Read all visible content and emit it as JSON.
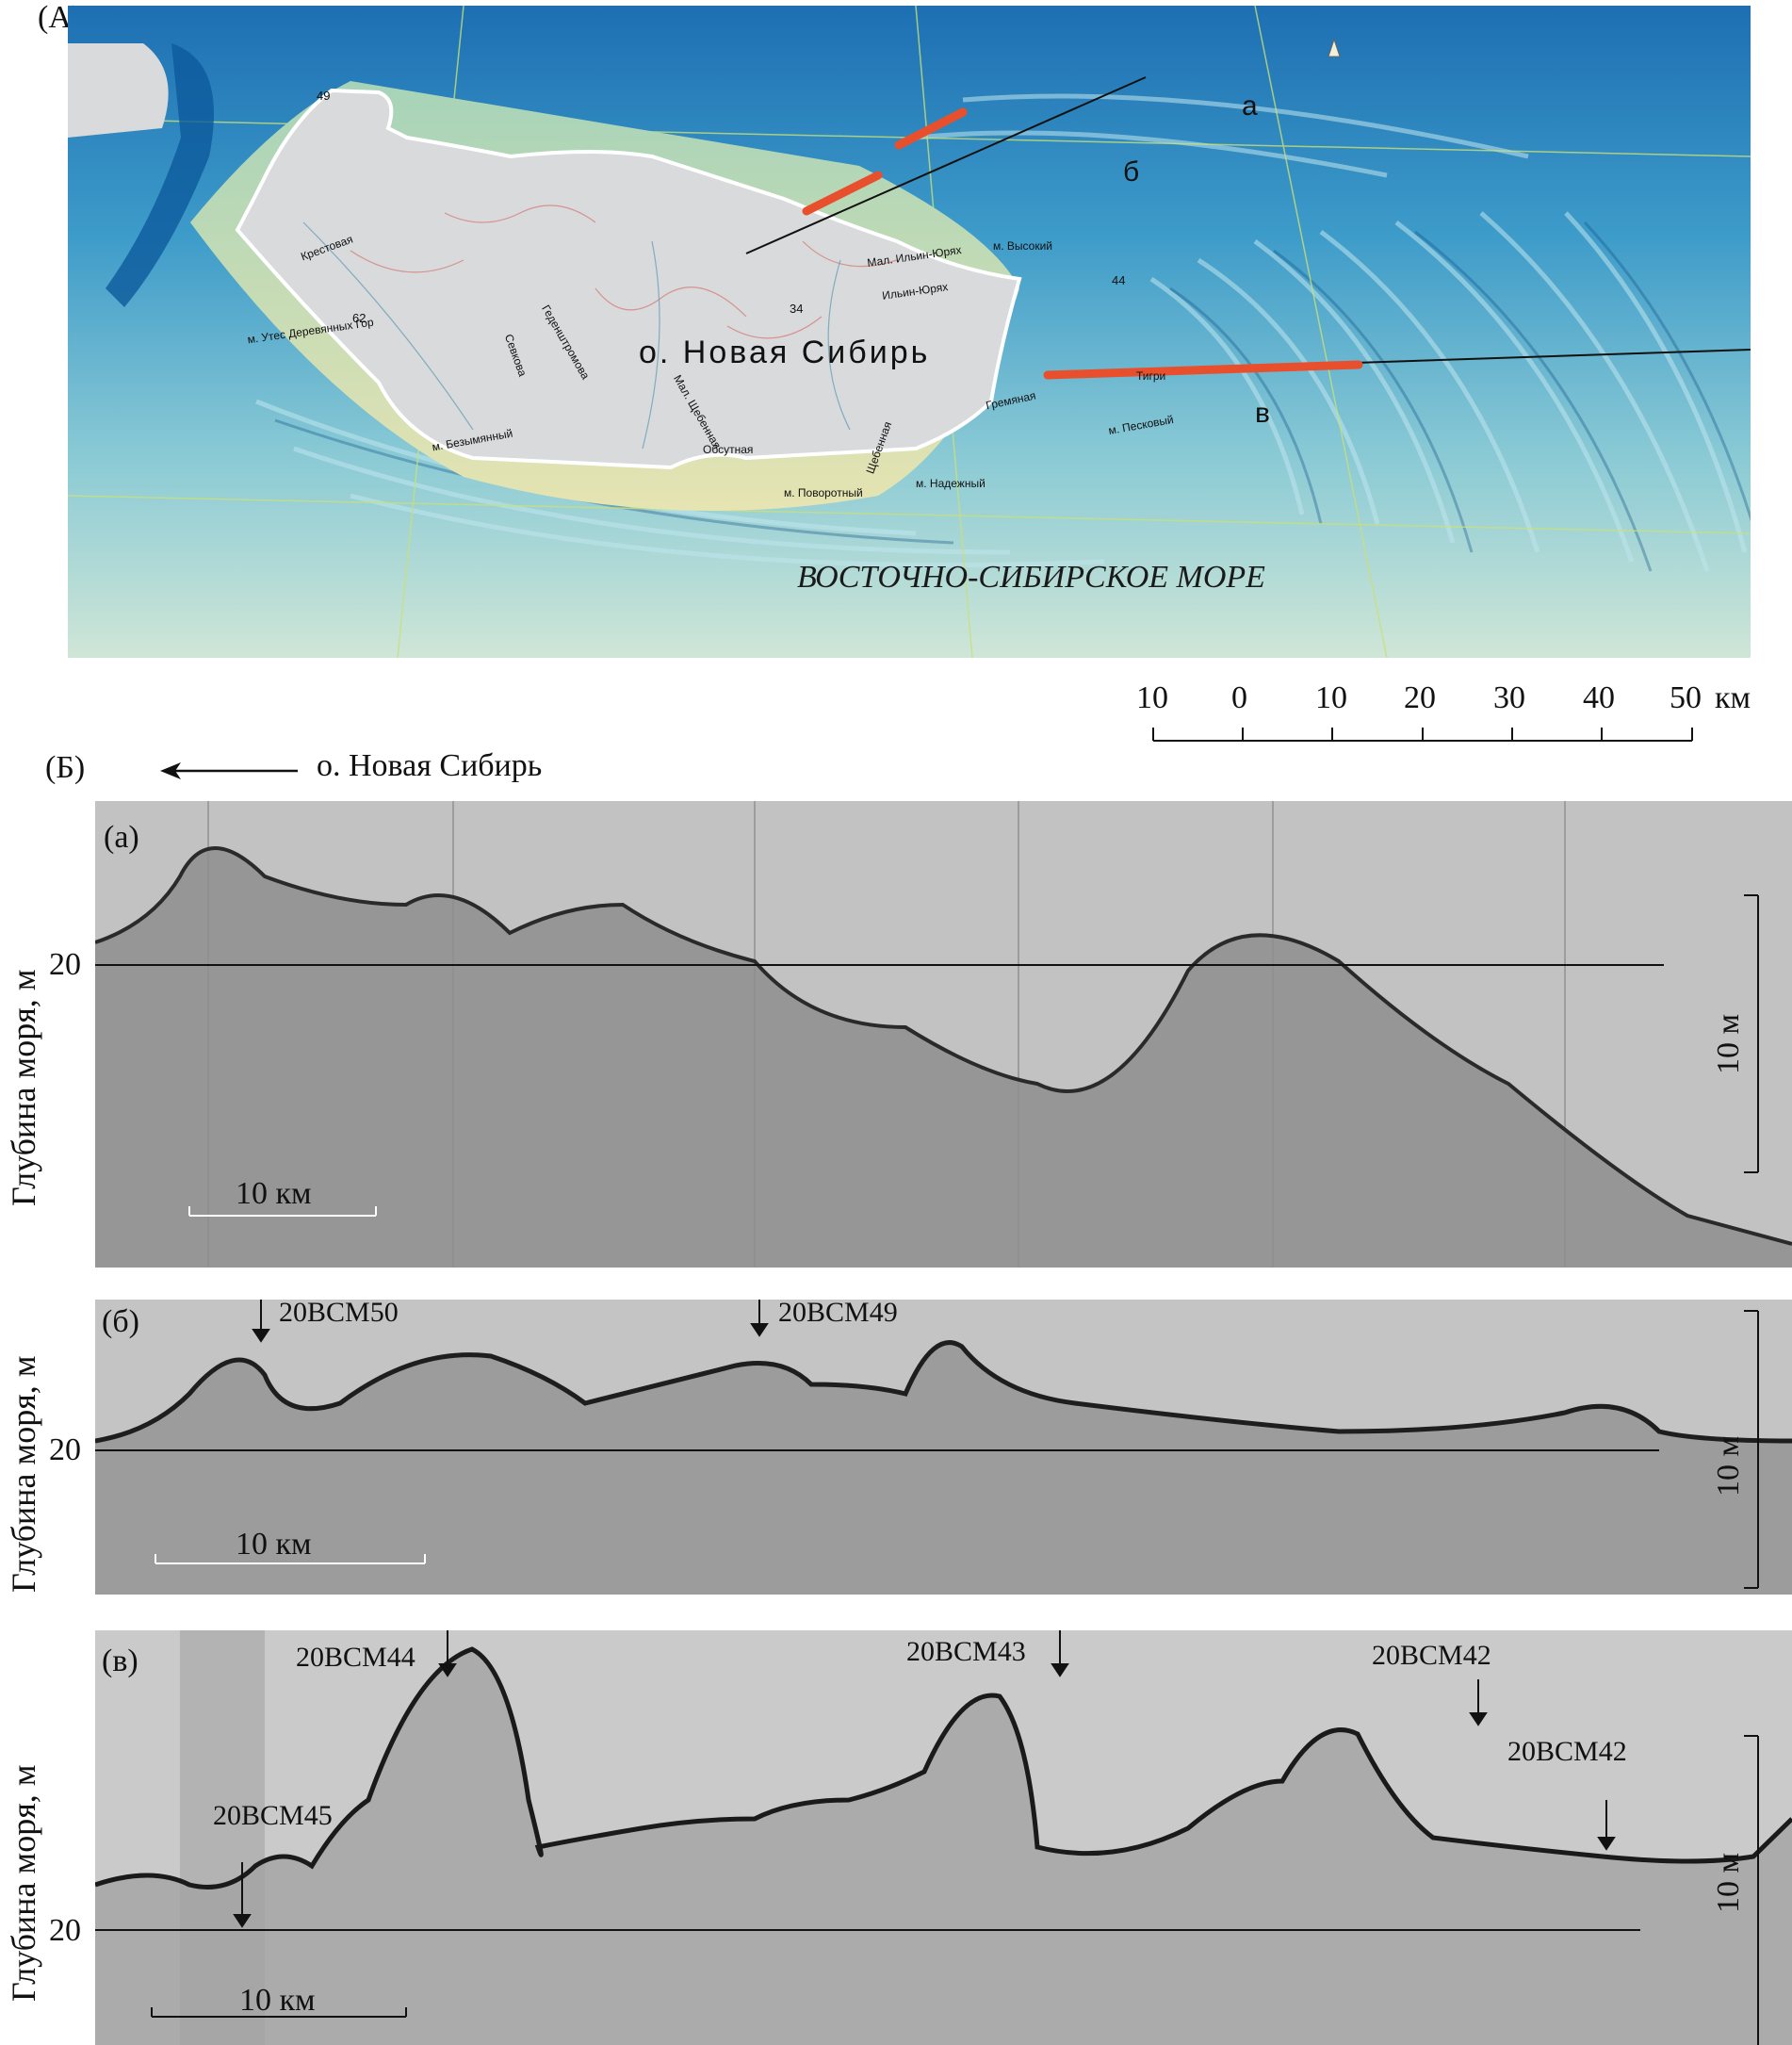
{
  "panel_a": {
    "label": "(A)",
    "island_name": "о. Новая Сибирь",
    "sea_name": "ВОСТОЧНО-СИБИРСКОЕ МОРЕ",
    "profile_letters": [
      "а",
      "б",
      "в"
    ],
    "scale": {
      "ticks": [
        "10",
        "0",
        "10",
        "20",
        "30",
        "40",
        "50"
      ],
      "unit": "км"
    },
    "map_labels": [
      "м. Утес Деревянных Гор",
      "м. Безымянный",
      "м. Поворотный",
      "м. Надежный",
      "м. Песковый",
      "Мал. Ильин-Юрях",
      "Ильин-Юрях",
      "Мал. Щебенная",
      "Щебенная",
      "Обсутная",
      "Гремяная",
      "Геденштромова",
      "Севкова",
      "Крестовая",
      "Тигри",
      "м. Высокий"
    ],
    "map_numbers": [
      "62",
      "34",
      "44",
      "49"
    ],
    "colors": {
      "sea_deep": "#1b74b8",
      "sea_shallow": "#7fc6d4",
      "land": "#d8dadb",
      "profile_red": "#e8502d"
    }
  },
  "panel_b": {
    "label": "(Б)",
    "direction_text": "о. Новая Сибирь",
    "y_axis_label": "Глубина моря, м",
    "depth_value": "20",
    "vertical_scale": "10 м",
    "horizontal_scale": "10 км",
    "profiles": [
      {
        "label": "(а)",
        "stations": []
      },
      {
        "label": "(б)",
        "stations": [
          "20BCM50",
          "20BCM49"
        ]
      },
      {
        "label": "(в)",
        "stations": [
          "20BCM44",
          "20BCM43",
          "20BCM42",
          "20BCM42",
          "20BCM45"
        ]
      }
    ]
  }
}
